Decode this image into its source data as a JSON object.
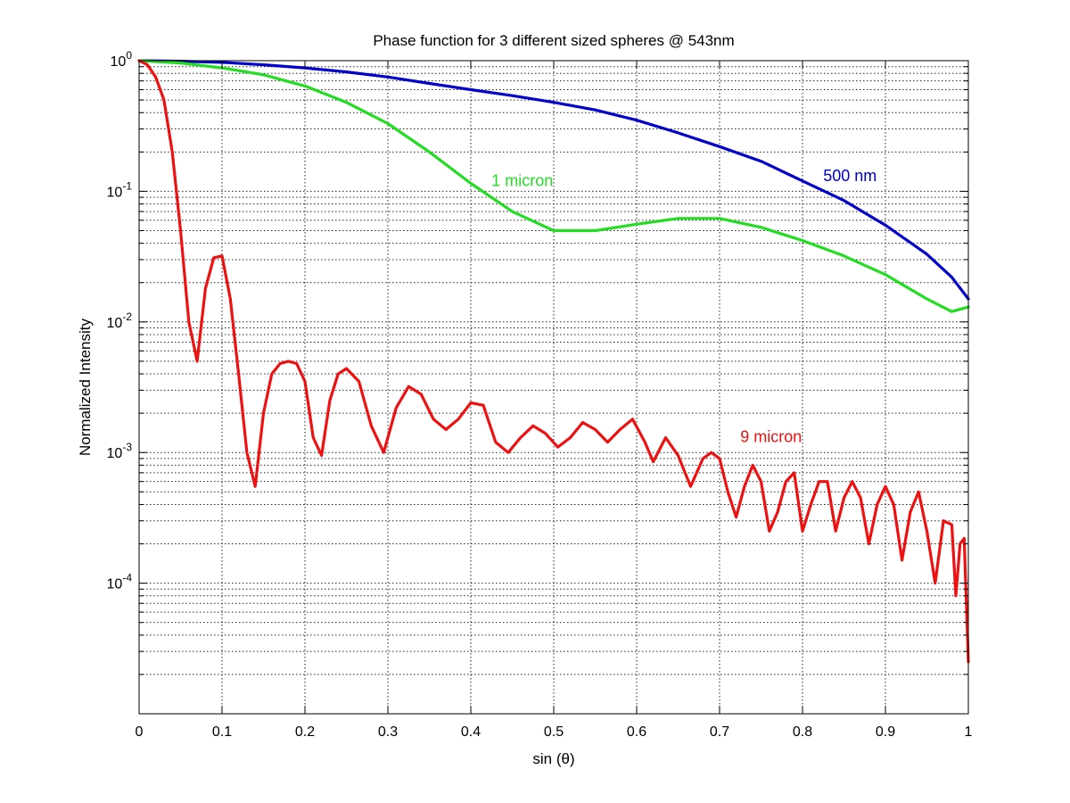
{
  "chart_data": {
    "type": "line",
    "title": "Phase function for 3 different sized spheres @ 543nm",
    "xlabel": "sin (θ)",
    "ylabel": "Normalized Intensity",
    "xlim": [
      0,
      1
    ],
    "ylim": [
      1e-05,
      1
    ],
    "yscale": "log",
    "grid": true,
    "x_ticks": [
      "0",
      "0.1",
      "0.2",
      "0.3",
      "0.4",
      "0.5",
      "0.6",
      "0.7",
      "0.8",
      "0.9",
      "1"
    ],
    "y_ticks": [
      {
        "base": "10",
        "exp": "0",
        "value": 1
      },
      {
        "base": "10",
        "exp": "-1",
        "value": 0.1
      },
      {
        "base": "10",
        "exp": "-2",
        "value": 0.01
      },
      {
        "base": "10",
        "exp": "-3",
        "value": 0.001
      },
      {
        "base": "10",
        "exp": "-4",
        "value": 0.0001
      }
    ],
    "series": [
      {
        "name": "500 nm",
        "color": "#0000cc",
        "x": [
          0,
          0.05,
          0.1,
          0.15,
          0.2,
          0.25,
          0.3,
          0.35,
          0.4,
          0.45,
          0.5,
          0.55,
          0.6,
          0.65,
          0.7,
          0.75,
          0.8,
          0.85,
          0.9,
          0.95,
          0.98,
          1.0
        ],
        "y": [
          1.0,
          0.99,
          0.97,
          0.93,
          0.88,
          0.82,
          0.75,
          0.67,
          0.6,
          0.54,
          0.48,
          0.42,
          0.35,
          0.28,
          0.22,
          0.17,
          0.12,
          0.085,
          0.055,
          0.033,
          0.022,
          0.015
        ]
      },
      {
        "name": "1 micron",
        "color": "#22dd22",
        "x": [
          0,
          0.05,
          0.1,
          0.15,
          0.2,
          0.25,
          0.3,
          0.35,
          0.4,
          0.45,
          0.5,
          0.55,
          0.6,
          0.65,
          0.7,
          0.75,
          0.8,
          0.85,
          0.9,
          0.95,
          0.98,
          1.0
        ],
        "y": [
          1.0,
          0.96,
          0.88,
          0.78,
          0.64,
          0.48,
          0.33,
          0.2,
          0.115,
          0.07,
          0.05,
          0.05,
          0.056,
          0.062,
          0.062,
          0.053,
          0.042,
          0.032,
          0.023,
          0.015,
          0.012,
          0.013
        ]
      },
      {
        "name": "9 micron",
        "color": "#ee1111",
        "x": [
          0,
          0.01,
          0.02,
          0.03,
          0.04,
          0.05,
          0.06,
          0.07,
          0.08,
          0.09,
          0.1,
          0.11,
          0.12,
          0.13,
          0.14,
          0.15,
          0.16,
          0.17,
          0.18,
          0.19,
          0.2,
          0.21,
          0.22,
          0.23,
          0.24,
          0.25,
          0.265,
          0.28,
          0.295,
          0.31,
          0.325,
          0.34,
          0.355,
          0.37,
          0.385,
          0.4,
          0.415,
          0.43,
          0.445,
          0.46,
          0.475,
          0.49,
          0.505,
          0.52,
          0.535,
          0.55,
          0.565,
          0.58,
          0.595,
          0.61,
          0.62,
          0.635,
          0.65,
          0.665,
          0.68,
          0.69,
          0.7,
          0.71,
          0.72,
          0.73,
          0.74,
          0.75,
          0.76,
          0.77,
          0.78,
          0.79,
          0.8,
          0.81,
          0.82,
          0.83,
          0.84,
          0.85,
          0.86,
          0.87,
          0.88,
          0.89,
          0.9,
          0.91,
          0.92,
          0.93,
          0.94,
          0.95,
          0.96,
          0.97,
          0.98,
          0.985,
          0.99,
          0.995,
          1.0
        ],
        "y": [
          1.0,
          0.93,
          0.75,
          0.5,
          0.2,
          0.05,
          0.01,
          0.005,
          0.018,
          0.031,
          0.032,
          0.015,
          0.004,
          0.001,
          0.00055,
          0.002,
          0.004,
          0.0048,
          0.005,
          0.0048,
          0.0035,
          0.0013,
          0.00095,
          0.0025,
          0.004,
          0.0044,
          0.0035,
          0.0016,
          0.001,
          0.0022,
          0.0032,
          0.0028,
          0.0018,
          0.0015,
          0.0018,
          0.0024,
          0.0023,
          0.0012,
          0.001,
          0.0013,
          0.0016,
          0.0014,
          0.0011,
          0.0013,
          0.0017,
          0.0015,
          0.0012,
          0.0015,
          0.0018,
          0.0012,
          0.00085,
          0.0013,
          0.00095,
          0.00055,
          0.0009,
          0.001,
          0.0009,
          0.0005,
          0.00032,
          0.00055,
          0.0008,
          0.0006,
          0.00025,
          0.00035,
          0.0006,
          0.0007,
          0.00025,
          0.0004,
          0.0006,
          0.0006,
          0.00025,
          0.00045,
          0.0006,
          0.00045,
          0.0002,
          0.0004,
          0.00055,
          0.0004,
          0.00015,
          0.00035,
          0.0005,
          0.00025,
          0.0001,
          0.0003,
          0.00028,
          8e-05,
          0.0002,
          0.00022,
          2.5e-05
        ]
      }
    ],
    "annotations": [
      {
        "text": "500 nm",
        "color": "#0000cc",
        "x": 0.825,
        "y": 0.12
      },
      {
        "text": "1 micron",
        "color": "#22dd22",
        "x": 0.425,
        "y": 0.11
      },
      {
        "text": "9 micron",
        "color": "#ee1111",
        "x": 0.725,
        "y": 0.0012
      }
    ]
  }
}
